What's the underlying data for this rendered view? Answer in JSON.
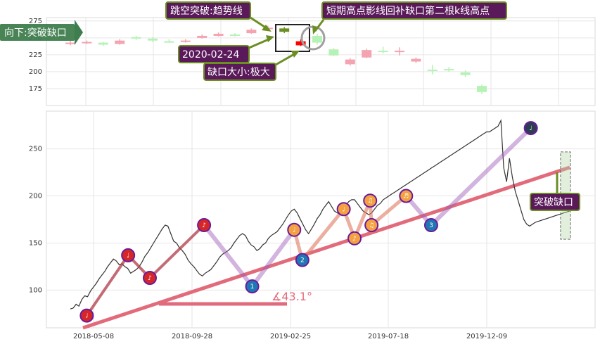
{
  "chart_data": [
    {
      "type": "candlestick",
      "panel": "top",
      "y_ticks": [
        175,
        200,
        225,
        250,
        275
      ],
      "ylim": [
        150,
        280
      ],
      "grid": true,
      "candles": [
        {
          "i": 0,
          "open": 241,
          "close": 243,
          "high": 246,
          "low": 239,
          "color": "#f4a3b0"
        },
        {
          "i": 1,
          "open": 243,
          "close": 244,
          "high": 246,
          "low": 241,
          "color": "#f4a3b0"
        },
        {
          "i": 2,
          "open": 243,
          "close": 240,
          "high": 244,
          "low": 238,
          "color": "#b6f2b6"
        },
        {
          "i": 3,
          "open": 241,
          "close": 246,
          "high": 248,
          "low": 240,
          "color": "#f4a3b0"
        },
        {
          "i": 4,
          "open": 249,
          "close": 251,
          "high": 253,
          "low": 247,
          "color": "#b6f2b6"
        },
        {
          "i": 5,
          "open": 249,
          "close": 246,
          "high": 251,
          "low": 244,
          "color": "#b6f2b6"
        },
        {
          "i": 6,
          "open": 244,
          "close": 245,
          "high": 248,
          "low": 243,
          "color": "#b6f2b6"
        },
        {
          "i": 7,
          "open": 244,
          "close": 246,
          "high": 248,
          "low": 243,
          "color": "#f4a3b0"
        },
        {
          "i": 8,
          "open": 250,
          "close": 253,
          "high": 255,
          "low": 249,
          "color": "#f4a3b0"
        },
        {
          "i": 9,
          "open": 253,
          "close": 256,
          "high": 258,
          "low": 252,
          "color": "#f4a3b0"
        },
        {
          "i": 10,
          "open": 255,
          "close": 254,
          "high": 257,
          "low": 252,
          "color": "#b6f2b6"
        },
        {
          "i": 11,
          "open": 257,
          "close": 262,
          "high": 264,
          "low": 256,
          "color": "#f4a3b0"
        },
        {
          "i": 12,
          "open": 263,
          "close": 265,
          "high": 268,
          "low": 261,
          "color": "#f4a3b0"
        },
        {
          "i": 13,
          "open": 259,
          "close": 264,
          "high": 266,
          "low": 257,
          "color": "#6b8e23"
        },
        {
          "i": 14,
          "open": 239,
          "close": 245,
          "high": 248,
          "low": 238,
          "color": "#ff0000"
        },
        {
          "i": 15,
          "open": 253,
          "close": 243,
          "high": 256,
          "low": 240,
          "color": "#b6f2b6"
        },
        {
          "i": 16,
          "open": 233,
          "close": 224,
          "high": 235,
          "low": 223,
          "color": "#b6f2b6"
        },
        {
          "i": 17,
          "open": 211,
          "close": 218,
          "high": 220,
          "low": 209,
          "color": "#f4a3b0"
        },
        {
          "i": 18,
          "open": 221,
          "close": 232,
          "high": 234,
          "low": 220,
          "color": "#f4a3b0"
        },
        {
          "i": 19,
          "open": 231,
          "close": 229,
          "high": 237,
          "low": 227,
          "color": "#b6f2b6"
        },
        {
          "i": 20,
          "open": 230,
          "close": 231,
          "high": 236,
          "low": 224,
          "color": "#f4a3b0"
        },
        {
          "i": 21,
          "open": 219,
          "close": 215,
          "high": 221,
          "low": 213,
          "color": "#f4a3b0"
        },
        {
          "i": 22,
          "open": 203,
          "close": 202,
          "high": 210,
          "low": 196,
          "color": "#b6f2b6"
        },
        {
          "i": 23,
          "open": 204,
          "close": 203,
          "high": 207,
          "low": 200,
          "color": "#b6f2b6"
        },
        {
          "i": 24,
          "open": 199,
          "close": 195,
          "high": 202,
          "low": 192,
          "color": "#b6f2b6"
        },
        {
          "i": 25,
          "open": 179,
          "close": 170,
          "high": 181,
          "low": 167,
          "color": "#b6f2b6"
        }
      ],
      "annotations": [
        {
          "text": "跳空突破:趋势线"
        },
        {
          "text": "短期高点影线回补缺口第二根k线高点"
        },
        {
          "text": "2020-02-24"
        },
        {
          "text": "缺口大小:极大"
        },
        {
          "text": "向下:突破缺口"
        }
      ]
    },
    {
      "type": "line",
      "panel": "bottom",
      "x_ticks": [
        "2018-05-08",
        "2018-09-28",
        "2019-02-25",
        "2019-07-18",
        "2019-12-09"
      ],
      "y_ticks": [
        100,
        150,
        200,
        250
      ],
      "ylim": [
        60,
        290
      ],
      "grid": true,
      "series": [
        {
          "name": "",
          "color": "#333333",
          "x": [
            0,
            5,
            10,
            15,
            20,
            25,
            30,
            35,
            40,
            45,
            50,
            55,
            60,
            65,
            70,
            75,
            80,
            85,
            90,
            95,
            100,
            105,
            110,
            115,
            120,
            125,
            130,
            135,
            140,
            145,
            150,
            155,
            160,
            165,
            170,
            175,
            180,
            185,
            190,
            195,
            200,
            205,
            210,
            215,
            220,
            225,
            230,
            235,
            240,
            245,
            250,
            255,
            260,
            265,
            270,
            275,
            280,
            285,
            290,
            295,
            300,
            305,
            310,
            315,
            320,
            325,
            330,
            335,
            340,
            345,
            350,
            355,
            360,
            365,
            370,
            375,
            380,
            385,
            390,
            395,
            400,
            405,
            410,
            415,
            420,
            425,
            430,
            435,
            440,
            445,
            450,
            455,
            460,
            465,
            470,
            475,
            480,
            485,
            490,
            495,
            500,
            505,
            510,
            515,
            520,
            525,
            530,
            535,
            540,
            545,
            550,
            555,
            560,
            565,
            570,
            575,
            580,
            585,
            590,
            595,
            600,
            605,
            610,
            615,
            620,
            625,
            630,
            635,
            640,
            645,
            650,
            655,
            660,
            665,
            670,
            675,
            680,
            685,
            690,
            695,
            700,
            705,
            710,
            715,
            720,
            725,
            730,
            735,
            740,
            745,
            750,
            755,
            760,
            765,
            770,
            775,
            780,
            785,
            790,
            795,
            800,
            805,
            810,
            815,
            820,
            825,
            830,
            835,
            840,
            845,
            850,
            855,
            860,
            865,
            870
          ],
          "y": [
            80,
            81,
            85,
            83,
            90,
            94,
            93,
            99,
            103,
            107,
            112,
            116,
            120,
            125,
            129,
            133,
            131,
            127,
            128,
            125,
            123,
            118,
            120,
            122,
            125,
            130,
            136,
            140,
            145,
            150,
            155,
            160,
            165,
            169,
            168,
            160,
            152,
            150,
            145,
            142,
            138,
            132,
            128,
            125,
            121,
            117,
            115,
            118,
            120,
            122,
            126,
            130,
            135,
            138,
            140,
            142,
            145,
            150,
            154,
            158,
            160,
            158,
            152,
            148,
            146,
            142,
            144,
            148,
            150,
            155,
            158,
            160,
            162,
            166,
            170,
            175,
            180,
            184,
            186,
            182,
            176,
            170,
            164,
            160,
            165,
            170,
            176,
            180,
            186,
            190,
            194,
            189,
            184,
            182,
            180,
            186,
            190,
            194,
            196,
            196,
            192,
            188,
            184,
            182,
            180,
            182,
            186,
            190,
            192,
            196,
            198,
            200,
            202,
            204,
            206,
            208,
            210,
            212,
            214,
            216,
            218,
            220,
            222,
            224,
            226,
            228,
            230,
            232,
            234,
            236,
            238,
            240,
            242,
            244,
            246,
            248,
            250,
            252,
            254,
            256,
            258,
            260,
            262,
            264,
            266,
            268,
            268,
            270,
            272,
            274,
            280,
            230,
            215,
            240,
            220,
            205,
            195,
            185,
            175,
            170,
            168,
            170,
            172,
            173,
            174,
            175,
            176,
            177,
            178,
            179,
            180,
            181,
            182,
            183,
            184
          ]
        }
      ],
      "pattern_points": [
        {
          "x": "2018-04-28",
          "y": 73,
          "label": "♩",
          "kind": "red"
        },
        {
          "x": "2018-06-28",
          "y": 137,
          "label": "♩",
          "kind": "red"
        },
        {
          "x": "2018-07-30",
          "y": 113,
          "label": "♪",
          "kind": "red"
        },
        {
          "x": "2018-10-18",
          "y": 169,
          "label": "♪",
          "kind": "red"
        },
        {
          "x": "2018-12-28",
          "y": 104,
          "label": "1",
          "kind": "blue"
        },
        {
          "x": "2019-02-28",
          "y": 164,
          "label": "♩",
          "kind": "orange"
        },
        {
          "x": "2019-03-12",
          "y": 132,
          "label": "2",
          "kind": "blue"
        },
        {
          "x": "2019-05-12",
          "y": 186,
          "label": "♩",
          "kind": "orange"
        },
        {
          "x": "2019-05-28",
          "y": 155,
          "label": "♪",
          "kind": "orange"
        },
        {
          "x": "2019-06-20",
          "y": 195,
          "label": "♫",
          "kind": "orange"
        },
        {
          "x": "2019-06-22",
          "y": 169,
          "label": "♫",
          "kind": "orange"
        },
        {
          "x": "2019-08-12",
          "y": 200,
          "label": "♬",
          "kind": "orange"
        },
        {
          "x": "2019-09-18",
          "y": 169,
          "label": "3",
          "kind": "blue"
        },
        {
          "x": "2020-02-12",
          "y": 272,
          "label": "♩",
          "kind": "navy"
        }
      ],
      "trend_angle_label": "∡43.1°",
      "annotations": [
        {
          "text": "突破缺口"
        }
      ]
    }
  ]
}
